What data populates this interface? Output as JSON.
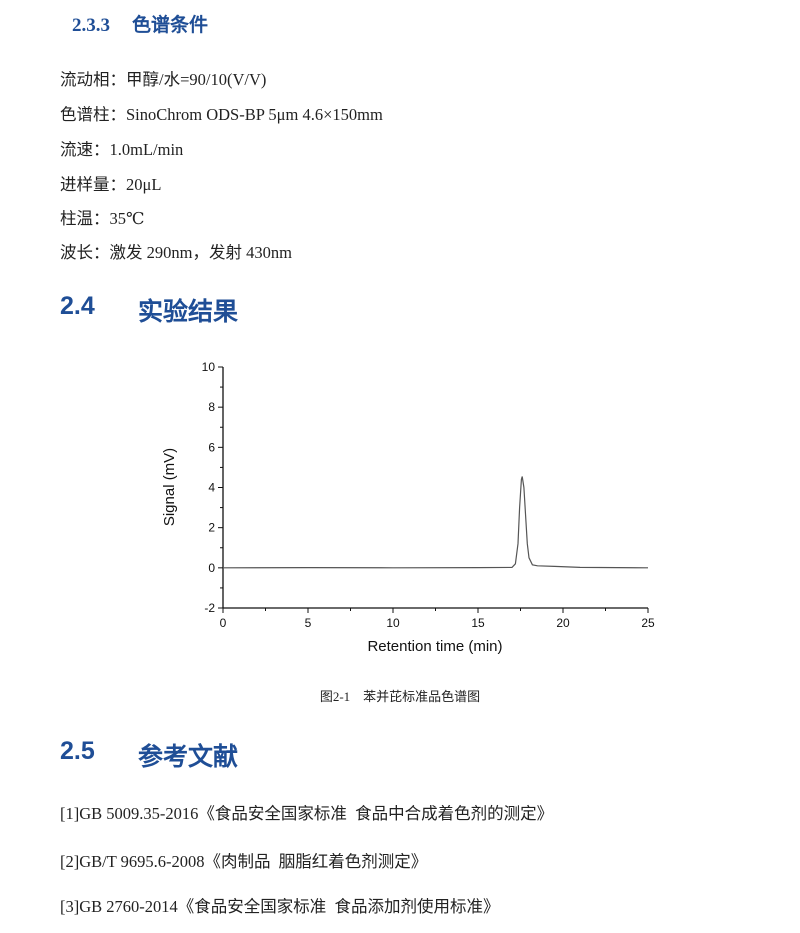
{
  "section_233": {
    "number": "2.3.3",
    "title": "色谱条件"
  },
  "conditions": [
    "流动相：甲醇/水=90/10(V/V)",
    "色谱柱：SinoChrom ODS-BP 5μm 4.6×150mm",
    "流速：1.0mL/min",
    "进样量：20μL",
    "柱温：35℃",
    "波长：激发 290nm，发射 430nm"
  ],
  "section_24": {
    "number": "2.4",
    "title": "实验结果"
  },
  "figure_caption": "图2-1    苯并芘标准品色谱图",
  "section_25": {
    "number": "2.5",
    "title": "参考文献"
  },
  "references": [
    "[1]GB 5009.35-2016《食品安全国家标准  食品中合成着色剂的测定》",
    "[2]GB/T 9695.6-2008《肉制品  胭脂红着色剂测定》",
    "[3]GB 2760-2014《食品安全国家标准  食品添加剂使用标准》"
  ],
  "colors": {
    "heading": "#1f4e96",
    "trace": "#555555"
  },
  "chart_data": {
    "type": "line",
    "xlabel": "Retention time (min)",
    "ylabel": "Signal (mV)",
    "xlim": [
      0,
      25
    ],
    "ylim": [
      -2,
      10
    ],
    "xticks": [
      0,
      5,
      10,
      15,
      20,
      25
    ],
    "yticks": [
      -2,
      0,
      2,
      4,
      6,
      8,
      10
    ],
    "grid": false,
    "series": [
      {
        "points": [
          [
            0,
            0
          ],
          [
            5,
            0.01
          ],
          [
            10,
            0
          ],
          [
            15,
            0.01
          ],
          [
            17.0,
            0.02
          ],
          [
            17.2,
            0.2
          ],
          [
            17.35,
            1.2
          ],
          [
            17.45,
            3.0
          ],
          [
            17.55,
            4.4
          ],
          [
            17.6,
            4.55
          ],
          [
            17.7,
            4.0
          ],
          [
            17.8,
            2.6
          ],
          [
            17.9,
            1.2
          ],
          [
            18.0,
            0.5
          ],
          [
            18.2,
            0.15
          ],
          [
            18.5,
            0.1
          ],
          [
            19.5,
            0.07
          ],
          [
            21,
            0.02
          ],
          [
            25,
            0
          ]
        ]
      }
    ]
  }
}
